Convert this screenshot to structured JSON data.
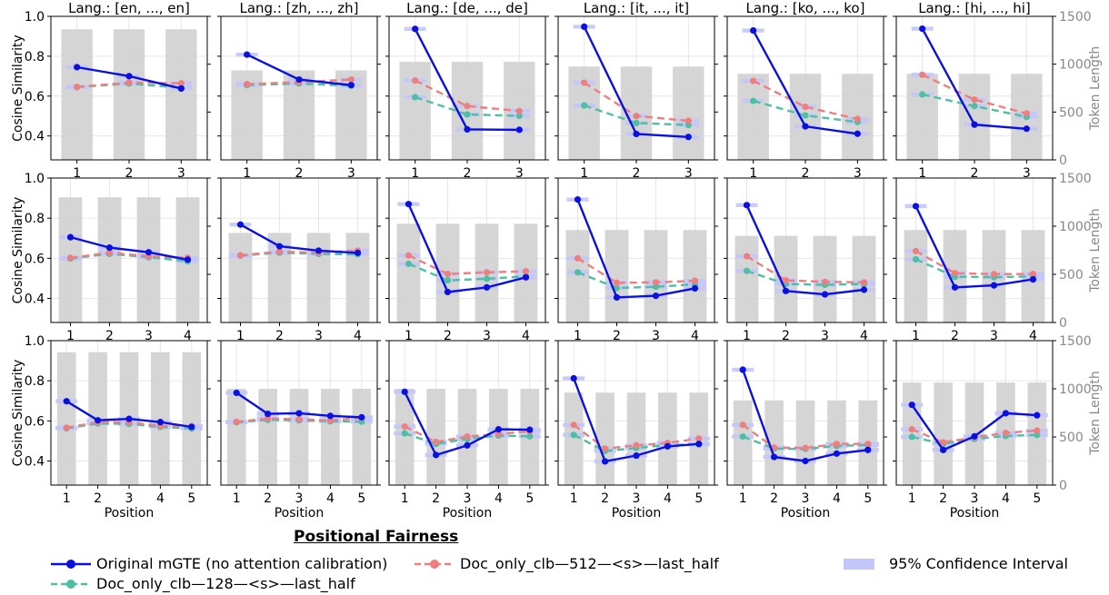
{
  "figure": {
    "legend_title": "Positional Fairness",
    "left_ylabel": "Cosine Similarity",
    "right_ylabel": "Token Length",
    "xlabel": "Position",
    "left_yticks": [
      "0.4",
      "0.6",
      "0.8",
      "1.0"
    ],
    "right_yticks": [
      "0",
      "500",
      "1000",
      "1500"
    ]
  },
  "legend": {
    "original": "Original mGTE (no attention calibration)",
    "clb512": "Doc_only_clb—512—<s>—last_half",
    "clb128": "Doc_only_clb—128—<s>—last_half",
    "ci": "95% Confidence Interval"
  },
  "colors": {
    "original": "#0a10e0",
    "clb512": "#ee7f7f",
    "clb128": "#4fbfa4",
    "bar": "#d3d3d3",
    "ci": "#c3c6f8"
  },
  "chart_data": [
    {
      "type": "line",
      "title": "Lang.: [en, ..., en]",
      "row": 0,
      "col": 0,
      "categories": [
        "1",
        "2",
        "3"
      ],
      "ylim": [
        0.28,
        1.0
      ],
      "y2lim": [
        0,
        1500
      ],
      "token_length": [
        1365,
        1365,
        1365
      ],
      "series": [
        {
          "name": "Original mGTE (no attention calibration)",
          "values": [
            0.745,
            0.7,
            0.638
          ]
        },
        {
          "name": "Doc_only_clb—512—<s>—last_half",
          "values": [
            0.646,
            0.668,
            0.664
          ]
        },
        {
          "name": "Doc_only_clb—128—<s>—last_half",
          "values": [
            0.645,
            0.663,
            0.642
          ]
        }
      ]
    },
    {
      "type": "line",
      "title": "Lang.: [zh, ..., zh]",
      "row": 0,
      "col": 1,
      "categories": [
        "1",
        "2",
        "3"
      ],
      "ylim": [
        0.28,
        1.0
      ],
      "y2lim": [
        0,
        1500
      ],
      "token_length": [
        935,
        935,
        935
      ],
      "series": [
        {
          "name": "Original mGTE (no attention calibration)",
          "values": [
            0.808,
            0.683,
            0.655
          ]
        },
        {
          "name": "Doc_only_clb—512—<s>—last_half",
          "values": [
            0.66,
            0.67,
            0.683
          ]
        },
        {
          "name": "Doc_only_clb—128—<s>—last_half",
          "values": [
            0.655,
            0.663,
            0.652
          ]
        }
      ]
    },
    {
      "type": "line",
      "title": "Lang.: [de, ..., de]",
      "row": 0,
      "col": 2,
      "categories": [
        "1",
        "2",
        "3"
      ],
      "ylim": [
        0.28,
        1.0
      ],
      "y2lim": [
        0,
        1500
      ],
      "token_length": [
        1025,
        1025,
        1025
      ],
      "series": [
        {
          "name": "Original mGTE (no attention calibration)",
          "values": [
            0.937,
            0.433,
            0.431
          ]
        },
        {
          "name": "Doc_only_clb—512—<s>—last_half",
          "values": [
            0.678,
            0.55,
            0.525
          ]
        },
        {
          "name": "Doc_only_clb—128—<s>—last_half",
          "values": [
            0.595,
            0.508,
            0.501
          ]
        }
      ]
    },
    {
      "type": "line",
      "title": "Lang.: [it, ..., it]",
      "row": 0,
      "col": 3,
      "categories": [
        "1",
        "2",
        "3"
      ],
      "ylim": [
        0.28,
        1.0
      ],
      "y2lim": [
        0,
        1500
      ],
      "token_length": [
        975,
        975,
        975
      ],
      "series": [
        {
          "name": "Original mGTE (no attention calibration)",
          "values": [
            0.948,
            0.41,
            0.395
          ]
        },
        {
          "name": "Doc_only_clb—512—<s>—last_half",
          "values": [
            0.667,
            0.5,
            0.476
          ]
        },
        {
          "name": "Doc_only_clb—128—<s>—last_half",
          "values": [
            0.553,
            0.465,
            0.455
          ]
        }
      ]
    },
    {
      "type": "line",
      "title": "Lang.: [ko, ..., ko]",
      "row": 0,
      "col": 4,
      "categories": [
        "1",
        "2",
        "3"
      ],
      "ylim": [
        0.28,
        1.0
      ],
      "y2lim": [
        0,
        1500
      ],
      "token_length": [
        900,
        900,
        900
      ],
      "series": [
        {
          "name": "Original mGTE (no attention calibration)",
          "values": [
            0.929,
            0.448,
            0.411
          ]
        },
        {
          "name": "Doc_only_clb—512—<s>—last_half",
          "values": [
            0.676,
            0.546,
            0.485
          ]
        },
        {
          "name": "Doc_only_clb—128—<s>—last_half",
          "values": [
            0.576,
            0.503,
            0.47
          ]
        }
      ]
    },
    {
      "type": "line",
      "title": "Lang.: [hi, ..., hi]",
      "row": 0,
      "col": 5,
      "categories": [
        "1",
        "2",
        "3"
      ],
      "ylim": [
        0.28,
        1.0
      ],
      "y2lim": [
        0,
        1500
      ],
      "token_length": [
        900,
        900,
        900
      ],
      "series": [
        {
          "name": "Original mGTE (no attention calibration)",
          "values": [
            0.938,
            0.457,
            0.436
          ]
        },
        {
          "name": "Doc_only_clb—512—<s>—last_half",
          "values": [
            0.707,
            0.582,
            0.513
          ]
        },
        {
          "name": "Doc_only_clb—128—<s>—last_half",
          "values": [
            0.608,
            0.55,
            0.496
          ]
        }
      ]
    },
    {
      "type": "line",
      "title": "",
      "row": 1,
      "col": 0,
      "categories": [
        "1",
        "2",
        "3",
        "4"
      ],
      "ylim": [
        0.28,
        1.0
      ],
      "y2lim": [
        0,
        1500
      ],
      "token_length": [
        1300,
        1300,
        1300,
        1300
      ],
      "series": [
        {
          "name": "Original mGTE (no attention calibration)",
          "values": [
            0.705,
            0.653,
            0.63,
            0.593
          ]
        },
        {
          "name": "Doc_only_clb—512—<s>—last_half",
          "values": [
            0.602,
            0.628,
            0.61,
            0.603
          ]
        },
        {
          "name": "Doc_only_clb—128—<s>—last_half",
          "values": [
            0.599,
            0.622,
            0.605,
            0.585
          ]
        }
      ]
    },
    {
      "type": "line",
      "title": "",
      "row": 1,
      "col": 1,
      "categories": [
        "1",
        "2",
        "3",
        "4"
      ],
      "ylim": [
        0.28,
        1.0
      ],
      "y2lim": [
        0,
        1500
      ],
      "token_length": [
        930,
        930,
        930,
        930
      ],
      "series": [
        {
          "name": "Original mGTE (no attention calibration)",
          "values": [
            0.768,
            0.66,
            0.638,
            0.627
          ]
        },
        {
          "name": "Doc_only_clb—512—<s>—last_half",
          "values": [
            0.615,
            0.633,
            0.628,
            0.638
          ]
        },
        {
          "name": "Doc_only_clb—128—<s>—last_half",
          "values": [
            0.613,
            0.628,
            0.622,
            0.62
          ]
        }
      ]
    },
    {
      "type": "line",
      "title": "",
      "row": 1,
      "col": 2,
      "categories": [
        "1",
        "2",
        "3",
        "4"
      ],
      "ylim": [
        0.28,
        1.0
      ],
      "y2lim": [
        0,
        1500
      ],
      "token_length": [
        1025,
        1025,
        1025,
        1025
      ],
      "series": [
        {
          "name": "Original mGTE (no attention calibration)",
          "values": [
            0.87,
            0.432,
            0.455,
            0.505
          ]
        },
        {
          "name": "Doc_only_clb—512—<s>—last_half",
          "values": [
            0.614,
            0.522,
            0.53,
            0.535
          ]
        },
        {
          "name": "Doc_only_clb—128—<s>—last_half",
          "values": [
            0.572,
            0.49,
            0.498,
            0.51
          ]
        }
      ]
    },
    {
      "type": "line",
      "title": "",
      "row": 1,
      "col": 3,
      "categories": [
        "1",
        "2",
        "3",
        "4"
      ],
      "ylim": [
        0.28,
        1.0
      ],
      "y2lim": [
        0,
        1500
      ],
      "token_length": [
        960,
        960,
        960,
        960
      ],
      "series": [
        {
          "name": "Original mGTE (no attention calibration)",
          "values": [
            0.893,
            0.405,
            0.413,
            0.45
          ]
        },
        {
          "name": "Doc_only_clb—512—<s>—last_half",
          "values": [
            0.6,
            0.478,
            0.48,
            0.488
          ]
        },
        {
          "name": "Doc_only_clb—128—<s>—last_half",
          "values": [
            0.53,
            0.452,
            0.458,
            0.47
          ]
        }
      ]
    },
    {
      "type": "line",
      "title": "",
      "row": 1,
      "col": 4,
      "categories": [
        "1",
        "2",
        "3",
        "4"
      ],
      "ylim": [
        0.28,
        1.0
      ],
      "y2lim": [
        0,
        1500
      ],
      "token_length": [
        900,
        900,
        900,
        900
      ],
      "series": [
        {
          "name": "Original mGTE (no attention calibration)",
          "values": [
            0.865,
            0.437,
            0.42,
            0.443
          ]
        },
        {
          "name": "Doc_only_clb—512—<s>—last_half",
          "values": [
            0.61,
            0.49,
            0.483,
            0.48
          ]
        },
        {
          "name": "Doc_only_clb—128—<s>—last_half",
          "values": [
            0.537,
            0.472,
            0.468,
            0.472
          ]
        }
      ]
    },
    {
      "type": "line",
      "title": "",
      "row": 1,
      "col": 5,
      "categories": [
        "1",
        "2",
        "3",
        "4"
      ],
      "ylim": [
        0.28,
        1.0
      ],
      "y2lim": [
        0,
        1500
      ],
      "token_length": [
        960,
        960,
        960,
        960
      ],
      "series": [
        {
          "name": "Original mGTE (no attention calibration)",
          "values": [
            0.86,
            0.455,
            0.465,
            0.495
          ]
        },
        {
          "name": "Doc_only_clb—512—<s>—last_half",
          "values": [
            0.636,
            0.526,
            0.521,
            0.522
          ]
        },
        {
          "name": "Doc_only_clb—128—<s>—last_half",
          "values": [
            0.595,
            0.508,
            0.506,
            0.51
          ]
        }
      ]
    },
    {
      "type": "line",
      "title": "",
      "row": 2,
      "col": 0,
      "categories": [
        "1",
        "2",
        "3",
        "4",
        "5"
      ],
      "ylim": [
        0.28,
        1.0
      ],
      "y2lim": [
        0,
        1500
      ],
      "token_length": [
        1380,
        1380,
        1380,
        1380,
        1380
      ],
      "series": [
        {
          "name": "Original mGTE (no attention calibration)",
          "values": [
            0.698,
            0.603,
            0.61,
            0.594,
            0.57
          ]
        },
        {
          "name": "Doc_only_clb—512—<s>—last_half",
          "values": [
            0.566,
            0.594,
            0.593,
            0.575,
            0.574
          ]
        },
        {
          "name": "Doc_only_clb—128—<s>—last_half",
          "values": [
            0.563,
            0.587,
            0.585,
            0.57,
            0.562
          ]
        }
      ]
    },
    {
      "type": "line",
      "title": "",
      "row": 2,
      "col": 1,
      "categories": [
        "1",
        "2",
        "3",
        "4",
        "5"
      ],
      "ylim": [
        0.28,
        1.0
      ],
      "y2lim": [
        0,
        1500
      ],
      "token_length": [
        1000,
        1000,
        1000,
        1000,
        1000
      ],
      "series": [
        {
          "name": "Original mGTE (no attention calibration)",
          "values": [
            0.74,
            0.635,
            0.638,
            0.625,
            0.618
          ]
        },
        {
          "name": "Doc_only_clb—512—<s>—last_half",
          "values": [
            0.595,
            0.612,
            0.608,
            0.602,
            0.615
          ]
        },
        {
          "name": "Doc_only_clb—128—<s>—last_half",
          "values": [
            0.593,
            0.605,
            0.603,
            0.598,
            0.596
          ]
        }
      ]
    },
    {
      "type": "line",
      "title": "",
      "row": 2,
      "col": 2,
      "categories": [
        "1",
        "2",
        "3",
        "4",
        "5"
      ],
      "ylim": [
        0.28,
        1.0
      ],
      "y2lim": [
        0,
        1500
      ],
      "token_length": [
        1000,
        1000,
        1000,
        1000,
        1000
      ],
      "series": [
        {
          "name": "Original mGTE (no attention calibration)",
          "values": [
            0.745,
            0.43,
            0.478,
            0.558,
            0.556
          ]
        },
        {
          "name": "Doc_only_clb—512—<s>—last_half",
          "values": [
            0.572,
            0.495,
            0.522,
            0.535,
            0.548
          ]
        },
        {
          "name": "Doc_only_clb—128—<s>—last_half",
          "values": [
            0.538,
            0.485,
            0.51,
            0.527,
            0.523
          ]
        }
      ]
    },
    {
      "type": "line",
      "title": "",
      "row": 2,
      "col": 3,
      "categories": [
        "1",
        "2",
        "3",
        "4",
        "5"
      ],
      "ylim": [
        0.28,
        1.0
      ],
      "y2lim": [
        0,
        1500
      ],
      "token_length": [
        960,
        960,
        960,
        960,
        960
      ],
      "series": [
        {
          "name": "Original mGTE (no attention calibration)",
          "values": [
            0.812,
            0.398,
            0.427,
            0.473,
            0.485
          ]
        },
        {
          "name": "Doc_only_clb—512—<s>—last_half",
          "values": [
            0.58,
            0.462,
            0.478,
            0.49,
            0.512
          ]
        },
        {
          "name": "Doc_only_clb—128—<s>—last_half",
          "values": [
            0.53,
            0.45,
            0.465,
            0.48,
            0.483
          ]
        }
      ]
    },
    {
      "type": "line",
      "title": "",
      "row": 2,
      "col": 4,
      "categories": [
        "1",
        "2",
        "3",
        "4",
        "5"
      ],
      "ylim": [
        0.28,
        1.0
      ],
      "y2lim": [
        0,
        1500
      ],
      "token_length": [
        880,
        880,
        880,
        880,
        880
      ],
      "series": [
        {
          "name": "Original mGTE (no attention calibration)",
          "values": [
            0.855,
            0.42,
            0.4,
            0.437,
            0.455
          ]
        },
        {
          "name": "Doc_only_clb—512—<s>—last_half",
          "values": [
            0.58,
            0.467,
            0.465,
            0.485,
            0.485
          ]
        },
        {
          "name": "Doc_only_clb—128—<s>—last_half",
          "values": [
            0.522,
            0.462,
            0.46,
            0.475,
            0.48
          ]
        }
      ]
    },
    {
      "type": "line",
      "title": "",
      "row": 2,
      "col": 5,
      "categories": [
        "1",
        "2",
        "3",
        "4",
        "5"
      ],
      "ylim": [
        0.28,
        1.0
      ],
      "y2lim": [
        0,
        1500
      ],
      "token_length": [
        1065,
        1065,
        1065,
        1065,
        1065
      ],
      "series": [
        {
          "name": "Original mGTE (no attention calibration)",
          "values": [
            0.68,
            0.455,
            0.523,
            0.638,
            0.628
          ]
        },
        {
          "name": "Doc_only_clb—512—<s>—last_half",
          "values": [
            0.558,
            0.493,
            0.518,
            0.54,
            0.552
          ]
        },
        {
          "name": "Doc_only_clb—128—<s>—last_half",
          "values": [
            0.52,
            0.485,
            0.51,
            0.525,
            0.53
          ]
        }
      ]
    }
  ]
}
